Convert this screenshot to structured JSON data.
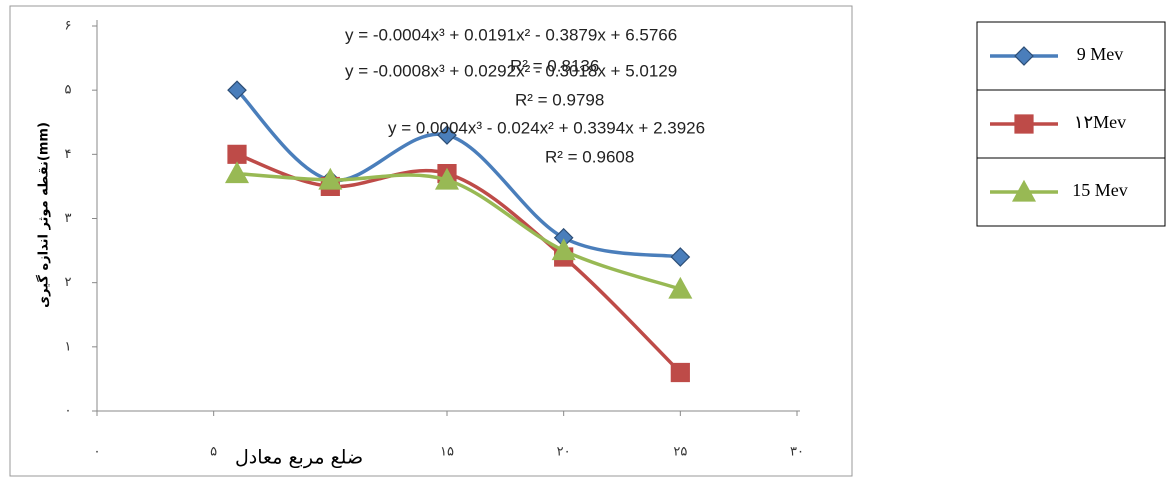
{
  "chart_data": {
    "type": "line",
    "x_label": "ضلع مربع معادل",
    "y_label": "نقطه موثر اندازه گیری(mm)",
    "x": [
      6,
      10,
      15,
      20,
      25
    ],
    "series": [
      {
        "name": "9 Mev",
        "color": "#4a7ebb",
        "marker": "diamond",
        "values": [
          5.0,
          3.6,
          4.3,
          2.7,
          2.4
        ]
      },
      {
        "name": "۱۲Mev",
        "color": "#be4b48",
        "marker": "square",
        "values": [
          4.0,
          3.5,
          3.7,
          2.4,
          0.6
        ]
      },
      {
        "name": "15 Mev",
        "color": "#98b954",
        "marker": "triangle",
        "values": [
          3.7,
          3.6,
          3.6,
          2.5,
          1.9
        ]
      }
    ],
    "xlim": [
      0,
      30
    ],
    "xticks": [
      {
        "value": 0,
        "label": "۰"
      },
      {
        "value": 5,
        "label": "۵"
      },
      {
        "value": 15,
        "label": "۱۵"
      },
      {
        "value": 20,
        "label": "۲۰"
      },
      {
        "value": 25,
        "label": "۲۵"
      },
      {
        "value": 30,
        "label": "۳۰"
      }
    ],
    "ylim": [
      0,
      6
    ],
    "yticks": [
      {
        "value": 0,
        "label": "۰"
      },
      {
        "value": 1,
        "label": "۱"
      },
      {
        "value": 2,
        "label": "۲"
      },
      {
        "value": 3,
        "label": "۳"
      },
      {
        "value": 4,
        "label": "۴"
      },
      {
        "value": 5,
        "label": "۵"
      },
      {
        "value": 6,
        "label": "۶"
      }
    ],
    "annotations": [
      "y = -0.0004x³ + 0.0191x² - 0.3879x + 6.5766",
      "R² = 0.8136",
      "y = -0.0008x³ + 0.0292x² - 0.3018x + 5.0129",
      "R² = 0.9798",
      "y = 0.0004x³ - 0.024x² + 0.3394x + 2.3926",
      "R² = 0.9608"
    ]
  }
}
